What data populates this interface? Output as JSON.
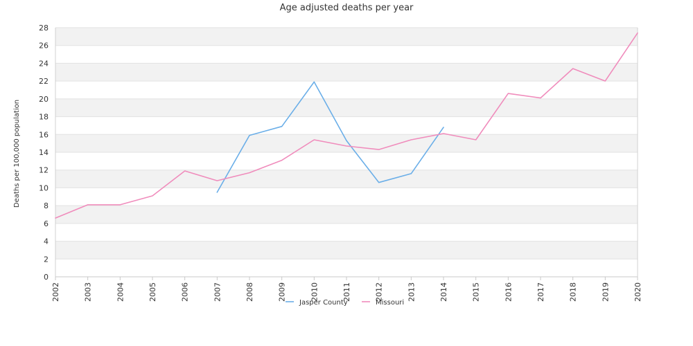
{
  "chart_data": {
    "type": "line",
    "title": "Age adjusted deaths per year",
    "xlabel": "",
    "ylabel": "Deaths per 100,000 population",
    "x": [
      "2002",
      "2003",
      "2004",
      "2005",
      "2006",
      "2007",
      "2008",
      "2009",
      "2010",
      "2011",
      "2012",
      "2013",
      "2014",
      "2015",
      "2016",
      "2017",
      "2018",
      "2019",
      "2020"
    ],
    "ylim": [
      0,
      28
    ],
    "yticks": [
      0,
      2,
      4,
      6,
      8,
      10,
      12,
      14,
      16,
      18,
      20,
      22,
      24,
      26,
      28
    ],
    "grid": "horizontal bands",
    "legend_position": "bottom-center",
    "series": [
      {
        "name": "Jasper County",
        "color": "#6aaee8",
        "values": [
          null,
          null,
          null,
          null,
          null,
          9.5,
          15.9,
          16.9,
          21.9,
          15.3,
          10.6,
          11.6,
          16.8,
          null,
          null,
          null,
          null,
          null,
          null
        ]
      },
      {
        "name": "Missouri",
        "color": "#f08cbc",
        "values": [
          6.6,
          8.1,
          8.1,
          9.1,
          11.9,
          10.8,
          11.7,
          13.1,
          15.4,
          14.7,
          14.3,
          15.4,
          16.1,
          15.4,
          20.6,
          20.1,
          23.4,
          22.0,
          27.4
        ]
      }
    ]
  }
}
